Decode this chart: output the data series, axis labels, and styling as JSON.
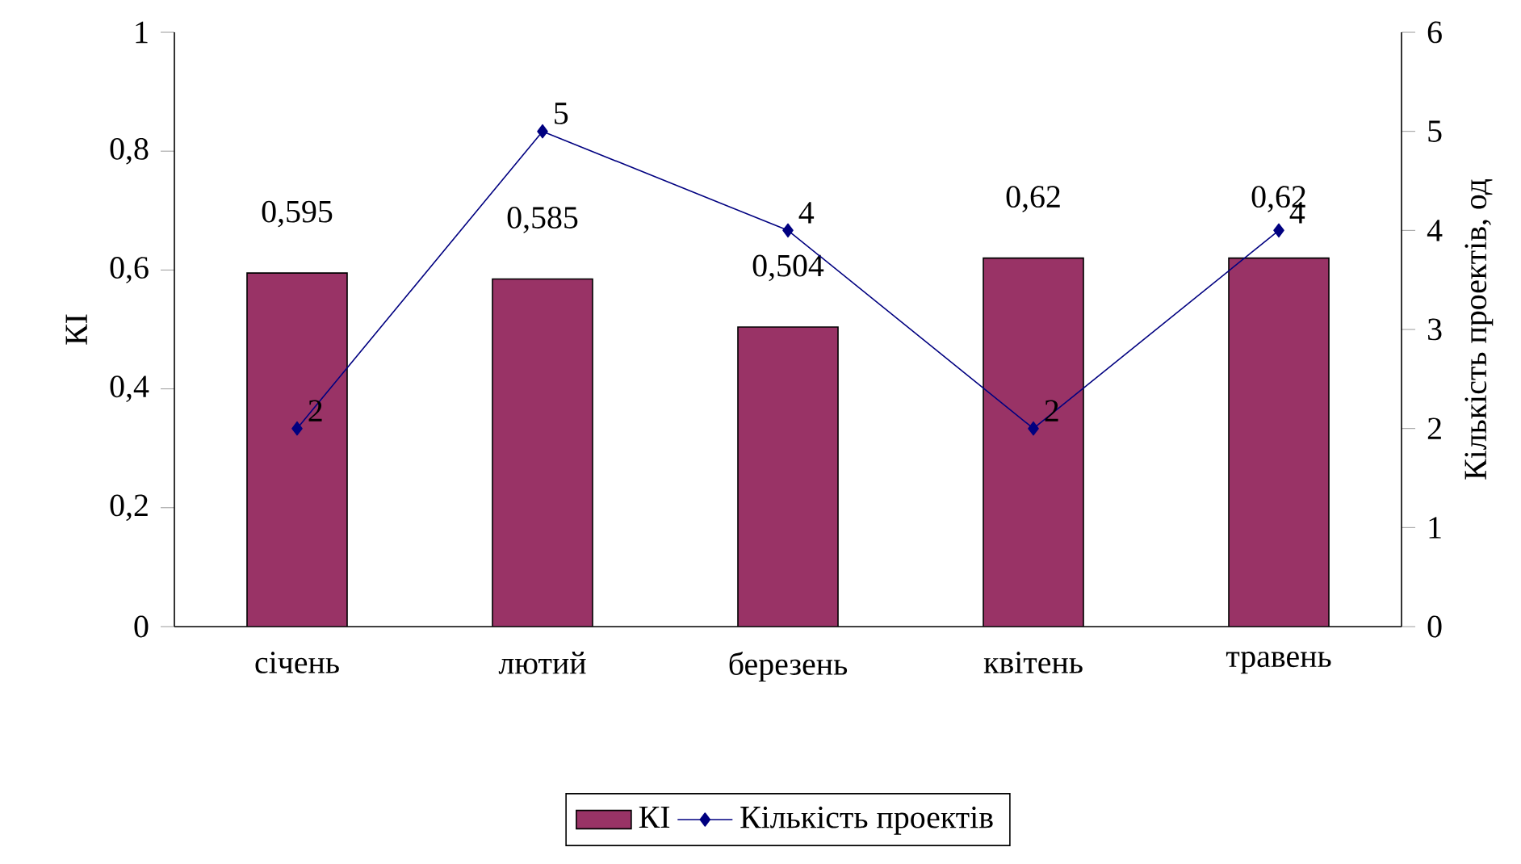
{
  "chart_data": {
    "type": "bar",
    "categories": [
      "січень",
      "лютий",
      "березень",
      "квітень",
      "травень"
    ],
    "series": [
      {
        "name": "КІ",
        "color": "#993366",
        "values": [
          0.595,
          0.585,
          0.504,
          0.62,
          0.62
        ],
        "value_labels": [
          "0,595",
          "0,585",
          "0,504",
          "0,62",
          "0,62"
        ]
      },
      {
        "name": "Кількість проектів",
        "type": "line",
        "axis": "y2",
        "color": "#000080",
        "values": [
          2,
          5,
          4,
          2,
          4
        ],
        "value_labels": [
          "2",
          "5",
          "4",
          "2",
          "4"
        ]
      }
    ],
    "ylabel": "КІ",
    "y2label": "Кількість проектів, од",
    "ylim": [
      0,
      1
    ],
    "yticks": [
      0,
      {
        "value": 0.2,
        "label": "0,2"
      },
      {
        "value": 0.4,
        "label": "0,4"
      },
      {
        "value": 0.6,
        "label": "0,6"
      },
      {
        "value": 0.8,
        "label": "0,8"
      },
      1
    ],
    "y2lim": [
      0,
      6
    ],
    "y2ticks": [
      0,
      1,
      2,
      3,
      4,
      5,
      6
    ],
    "legend": "bottom",
    "marker": "diamond",
    "grid": false
  }
}
